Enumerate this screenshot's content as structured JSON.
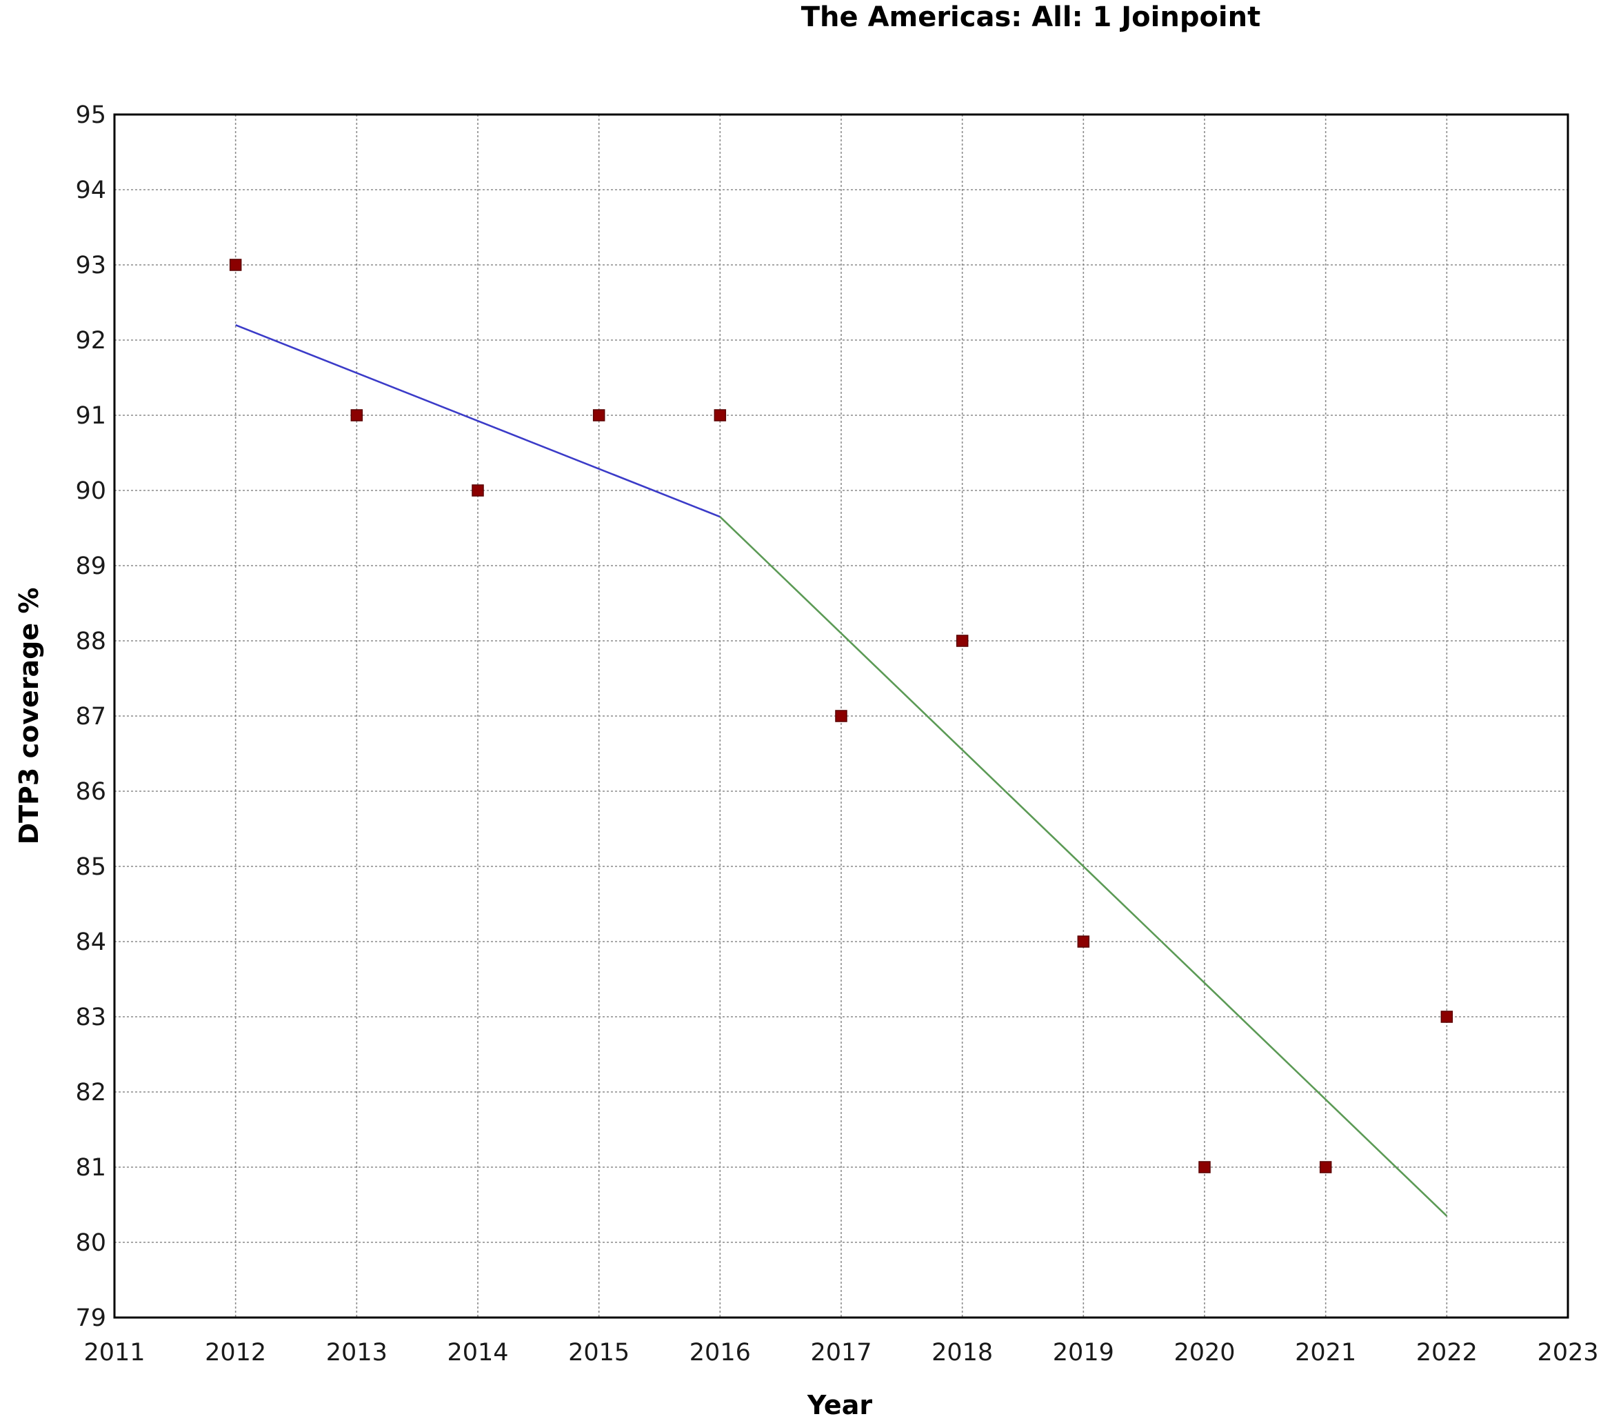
{
  "chart_data": {
    "type": "scatter",
    "title": "The Americas: All: 1 Joinpoint",
    "xlabel": "Year",
    "ylabel": "DTP3 coverage %",
    "xlim": [
      2011,
      2023
    ],
    "ylim": [
      79,
      95
    ],
    "x_ticks": [
      2011,
      2012,
      2013,
      2014,
      2015,
      2016,
      2017,
      2018,
      2019,
      2020,
      2021,
      2022,
      2023
    ],
    "y_ticks": [
      79,
      80,
      81,
      82,
      83,
      84,
      85,
      86,
      87,
      88,
      89,
      90,
      91,
      92,
      93,
      94,
      95
    ],
    "grid": true,
    "legend": "none",
    "series": [
      {
        "kind": "points",
        "marker": "square",
        "color": "#8b0000",
        "x": [
          2012,
          2013,
          2014,
          2015,
          2016,
          2017,
          2018,
          2019,
          2020,
          2021,
          2022
        ],
        "y": [
          93,
          91,
          90,
          91,
          91,
          87,
          88,
          84,
          81,
          81,
          83
        ]
      },
      {
        "kind": "line",
        "color": "#3b3bc8",
        "x": [
          2012,
          2016
        ],
        "y": [
          92.2,
          89.65
        ]
      },
      {
        "kind": "line",
        "color": "#5b9a55",
        "x": [
          2016,
          2022
        ],
        "y": [
          89.65,
          80.35
        ]
      }
    ]
  }
}
